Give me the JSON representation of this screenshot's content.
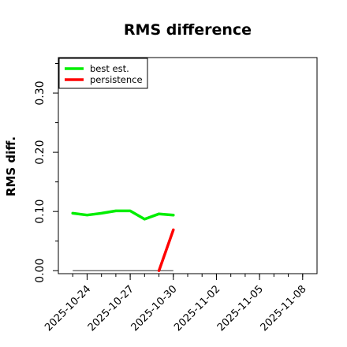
{
  "chart_data": {
    "type": "line",
    "title": "RMS difference",
    "xlabel": "",
    "ylabel": "RMS diff.",
    "y_ticks": [
      "0.00",
      "0.10",
      "0.20",
      "0.30"
    ],
    "x_ticks": [
      "2025-10-24",
      "2025-10-27",
      "2025-10-30",
      "2025-11-02",
      "2025-11-05",
      "2025-11-08"
    ],
    "xlim": [
      "2025-10-22",
      "2025-11-09"
    ],
    "ylim": [
      -0.005,
      0.36
    ],
    "legend": {
      "position": "top-left",
      "entries": [
        "best est.",
        "persistence"
      ]
    },
    "series": [
      {
        "name": "best est.",
        "color": "#00ee00",
        "points": [
          {
            "x": "2025-10-23",
            "y": 0.097
          },
          {
            "x": "2025-10-24",
            "y": 0.094
          },
          {
            "x": "2025-10-25",
            "y": 0.097
          },
          {
            "x": "2025-10-26",
            "y": 0.101
          },
          {
            "x": "2025-10-27",
            "y": 0.101
          },
          {
            "x": "2025-10-28",
            "y": 0.087
          },
          {
            "x": "2025-10-29",
            "y": 0.096
          },
          {
            "x": "2025-10-30",
            "y": 0.094
          }
        ]
      },
      {
        "name": "persistence",
        "color": "#ff0000",
        "points": [
          {
            "x": "2025-10-29",
            "y": 0.0
          },
          {
            "x": "2025-10-30",
            "y": 0.069
          }
        ]
      }
    ],
    "reference_line": {
      "y": 0.0,
      "from": "2025-10-23",
      "to": "2025-10-30",
      "color": "#555555"
    }
  }
}
